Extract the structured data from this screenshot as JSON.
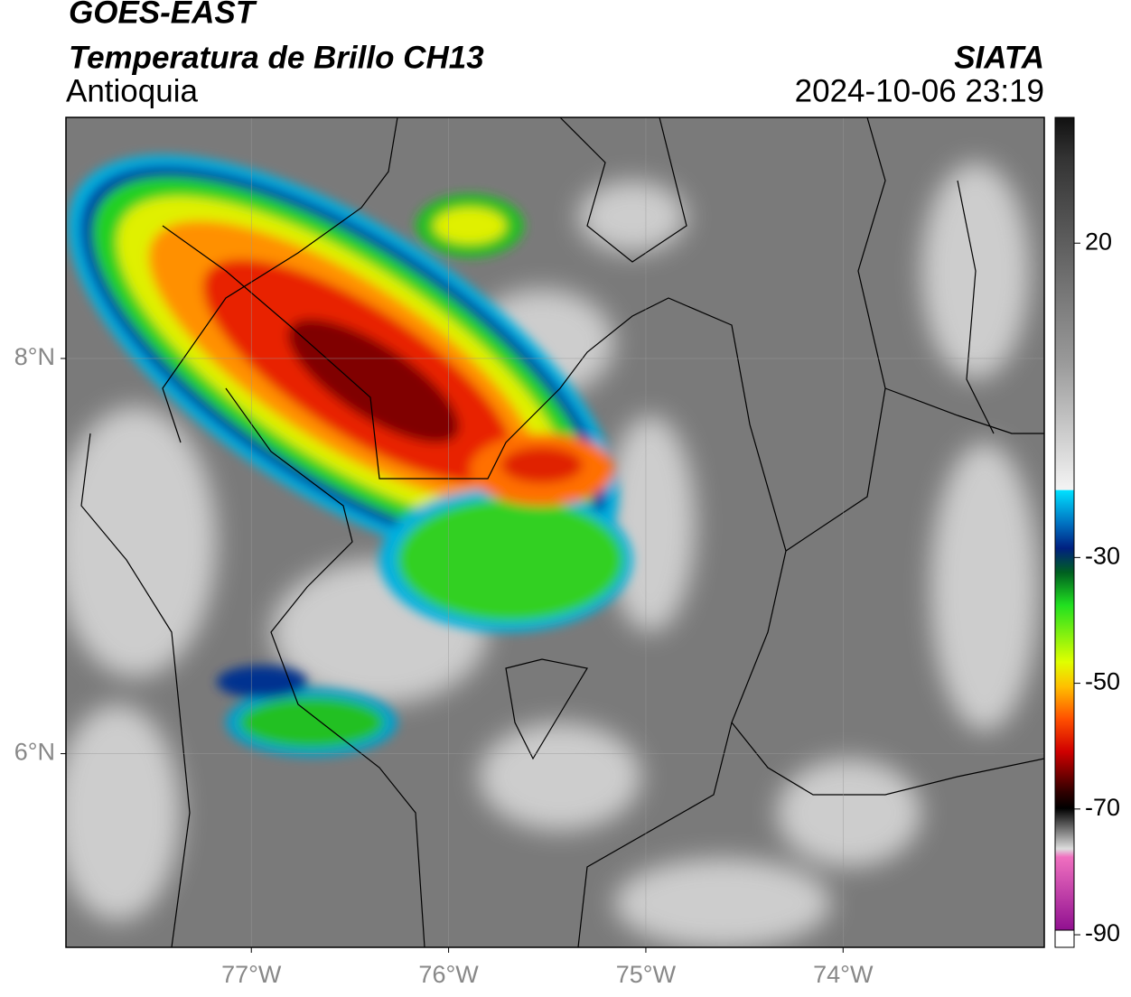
{
  "header": {
    "title": "GOES-EAST",
    "subtitle": "Temperatura de Brillo CH13",
    "region": "Antioquia",
    "source": "SIATA",
    "datetime": "2024-10-06 23:19"
  },
  "map": {
    "xlim": [
      -77.94,
      -72.98
    ],
    "ylim": [
      5.02,
      9.22
    ],
    "xticks": [
      {
        "value": -77,
        "label": "77°W"
      },
      {
        "value": -76,
        "label": "76°W"
      },
      {
        "value": -75,
        "label": "75°W"
      },
      {
        "value": -74,
        "label": "74°W"
      }
    ],
    "yticks": [
      {
        "value": 8,
        "label": "8°N"
      },
      {
        "value": 6,
        "label": "6°N"
      }
    ],
    "grid": true
  },
  "colorbar": {
    "lim": [
      -92,
      40
    ],
    "ticks": [
      20,
      -30,
      -50,
      -70,
      -90
    ]
  }
}
